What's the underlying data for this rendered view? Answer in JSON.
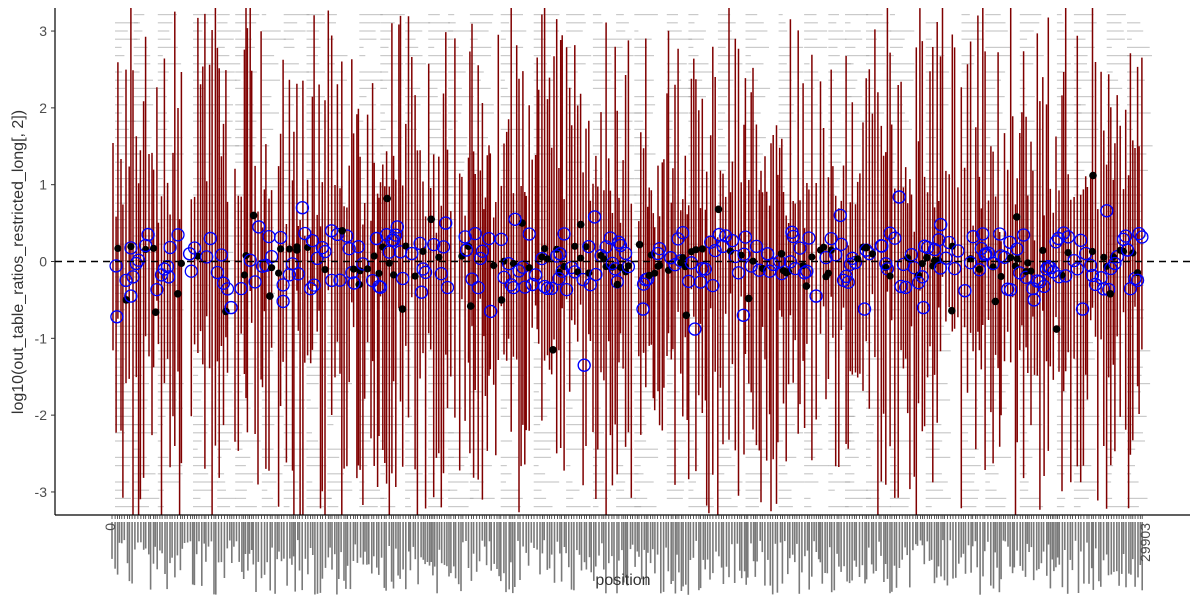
{
  "chart_data": {
    "type": "scatter",
    "title": "",
    "xlabel": "position",
    "ylabel": "log10(out_table_ratios_restricted_long[, 2])",
    "xlim": [
      0,
      29903
    ],
    "ylim": [
      -3.3,
      3.3
    ],
    "yticks": [
      -3,
      -2,
      -1,
      0,
      1,
      2,
      3
    ],
    "xtick_labels_readable": [
      "0",
      "29903"
    ],
    "reference_line_y": 0,
    "grid": false,
    "legend": "none",
    "colors": {
      "error_bar": "#800000",
      "filled_point": "#000000",
      "open_circle": "#0000ff",
      "reference_line": "#000000",
      "annotation_text": "#9e9e9e"
    },
    "series": [
      {
        "marker": "filled",
        "x": [
          470,
          1320,
          1960,
          3350,
          4150,
          4620,
          5400,
          6710,
          7200,
          8010,
          8450,
          9280,
          10420,
          11310,
          11910,
          12800,
          13600,
          14660,
          15300,
          16650,
          17580,
          18450,
          19400,
          20120,
          21850,
          23600,
          24320,
          25580,
          26200,
          27350,
          28400,
          28900
        ],
        "y": [
          -0.5,
          -0.66,
          -0.42,
          -0.65,
          0.6,
          -0.45,
          0.15,
          0.4,
          -0.3,
          0.82,
          -0.62,
          0.55,
          -0.58,
          -0.5,
          0.5,
          -1.15,
          0.48,
          -0.3,
          0.22,
          -0.7,
          0.68,
          -0.48,
          0.1,
          -0.32,
          0.18,
          0.05,
          -0.64,
          -0.52,
          0.58,
          -0.88,
          1.12,
          -0.42
        ]
      },
      {
        "marker": "open",
        "x": [
          200,
          600,
          1100,
          1700,
          2300,
          2900,
          3500,
          4300,
          5000,
          5560,
          6400,
          7050,
          7700,
          8300,
          9000,
          9700,
          10300,
          11000,
          11700,
          12200,
          13000,
          13700,
          14000,
          14700,
          15400,
          16200,
          16900,
          17600,
          18300,
          19000,
          19700,
          20400,
          21100,
          21800,
          22300,
          22800,
          23500,
          24000,
          24700,
          25300,
          26000,
          26700,
          27400,
          28100,
          28800,
          29400
        ],
        "y": [
          -0.72,
          -0.45,
          0.35,
          -0.2,
          0.1,
          0.3,
          -0.6,
          0.45,
          -0.52,
          0.7,
          0.4,
          -0.28,
          0.3,
          0.45,
          -0.4,
          0.5,
          0.15,
          -0.65,
          0.55,
          -0.3,
          0.1,
          -1.35,
          0.58,
          0.25,
          -0.62,
          0.05,
          -0.88,
          0.35,
          -0.7,
          0.1,
          0.38,
          -0.45,
          0.6,
          -0.62,
          0.2,
          0.84,
          -0.6,
          0.48,
          -0.38,
          0.1,
          0.25,
          -0.5,
          0.3,
          -0.62,
          0.66,
          0.15
        ]
      }
    ]
  }
}
